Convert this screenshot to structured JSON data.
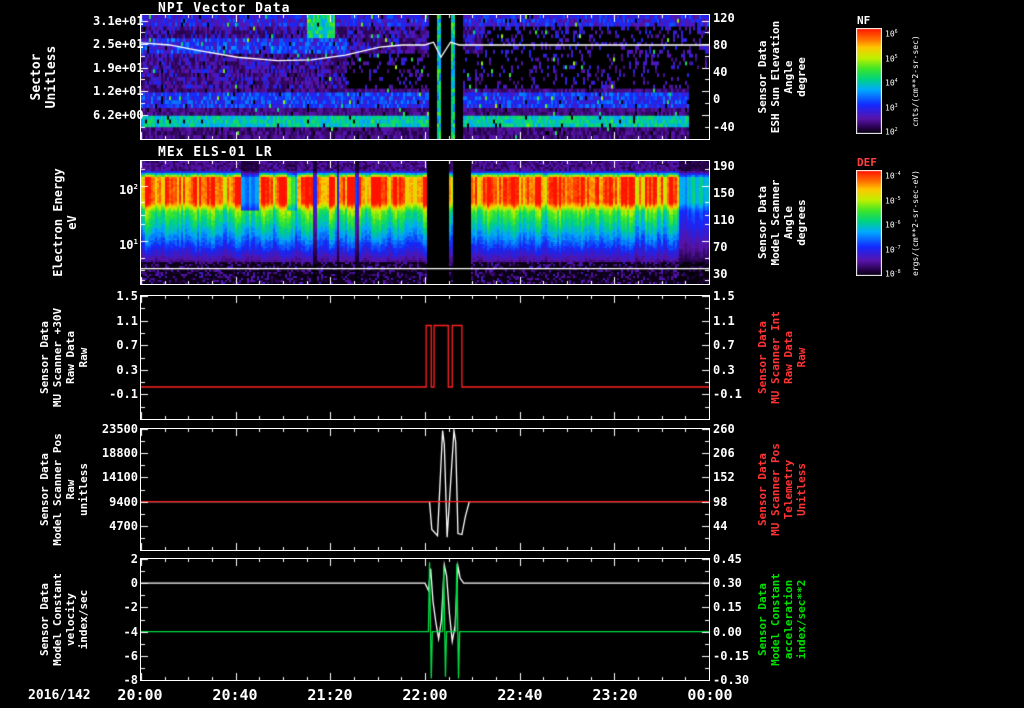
{
  "x_axis": {
    "date": "2016/142",
    "labels": [
      "20:00",
      "20:40",
      "21:20",
      "22:00",
      "22:40",
      "23:20",
      "00:00"
    ],
    "range_hours": 4
  },
  "colorbars": [
    {
      "label": "NF",
      "label_color": "#ffffff",
      "units": "cnts/(cm**2-sr-sec)",
      "ticks": [
        "10^6",
        "10^5",
        "10^4",
        "10^3",
        "10^2"
      ]
    },
    {
      "label": "DEF",
      "label_color": "#ff4040",
      "units": "ergs/(cm**2-sr-sec-eV)",
      "ticks": [
        "10^-4",
        "10^-5",
        "10^-6",
        "10^-7",
        "10^-8"
      ]
    }
  ],
  "chart_data": [
    {
      "id": "npi",
      "type": "heatmap",
      "title": "NPI Vector Data",
      "description": "Low-count sector spectrogram: violet/blue speckle, bright cyan band near bottom sectors, dark middle sectors after 21:25, data gap ~22:02-22:15, white sun-elevation overlay line",
      "ylabel_left": "Sector\nUnitless",
      "left_ticks": [
        {
          "f": 0.045,
          "label": "3.1e+01"
        },
        {
          "f": 0.235,
          "label": "2.5e+01"
        },
        {
          "f": 0.425,
          "label": "1.9e+01"
        },
        {
          "f": 0.615,
          "label": "1.2e+01"
        },
        {
          "f": 0.805,
          "label": "6.2e+00"
        }
      ],
      "left_minor_f": [
        0.14,
        0.33,
        0.52,
        0.71,
        0.9
      ],
      "ylabel_right": "Sensor Data\nESH Sun Elevation\nAngle\ndegree",
      "right_label_color": "#ffffff",
      "right_ticks": [
        {
          "f": 0.022,
          "label": "120"
        },
        {
          "f": 0.242,
          "label": "80"
        },
        {
          "f": 0.462,
          "label": "40"
        },
        {
          "f": 0.681,
          "label": "0"
        },
        {
          "f": 0.901,
          "label": "-40"
        }
      ],
      "ylim_right": [
        -58,
        124
      ],
      "series": [
        {
          "name": "ESH Sun Elevation Angle",
          "color": "#ffffff",
          "axis": "right",
          "points": [
            [
              0,
              83
            ],
            [
              0.05,
              80
            ],
            [
              0.1,
              72
            ],
            [
              0.17,
              62
            ],
            [
              0.24,
              57
            ],
            [
              0.3,
              58
            ],
            [
              0.36,
              65
            ],
            [
              0.42,
              77
            ],
            [
              0.46,
              80
            ],
            [
              0.5,
              80
            ],
            [
              0.515,
              84
            ],
            [
              0.528,
              62
            ],
            [
              0.545,
              84
            ],
            [
              0.56,
              80
            ],
            [
              1,
              80
            ]
          ]
        }
      ]
    },
    {
      "id": "els",
      "type": "heatmap",
      "title": "MEx ELS-01 LR",
      "description": "Electron energy-time spectrogram: intense red band 20-100 eV, green mid energies, blue/dark low energies, vertical striping, data gap ~22:02-22:15",
      "ylabel_left": "Electron Energy\neV",
      "left_ticks": [
        {
          "f": 0.2,
          "label": "10^2"
        },
        {
          "f": 0.65,
          "label": "10^1"
        }
      ],
      "left_minor_f": [
        0.065,
        0.336,
        0.436,
        0.515,
        0.785,
        0.886,
        0.965
      ],
      "ylabel_right": "Sensor Data\nModel Scanner\nAngle\ndegrees",
      "right_label_color": "#ffffff",
      "right_ticks": [
        {
          "f": 0.04,
          "label": "190"
        },
        {
          "f": 0.26,
          "label": "150"
        },
        {
          "f": 0.48,
          "label": "110"
        },
        {
          "f": 0.7,
          "label": "70"
        },
        {
          "f": 0.92,
          "label": "30"
        }
      ],
      "series": [
        {
          "name": "baseline",
          "color": "#ffffff",
          "axis": "frac",
          "points": [
            [
              0,
              0.875
            ],
            [
              1,
              0.875
            ]
          ]
        }
      ]
    },
    {
      "id": "mu_scanner_raw",
      "type": "line",
      "ylabel_left": "Sensor Data\nMU Scanner +30V\nRaw Data\nRaw",
      "left_ticks": [
        {
          "f": 0,
          "label": "1.5"
        },
        {
          "f": 0.2,
          "label": "1.1"
        },
        {
          "f": 0.4,
          "label": "0.7"
        },
        {
          "f": 0.6,
          "label": "0.3"
        },
        {
          "f": 0.8,
          "label": "-0.1"
        }
      ],
      "left_minor_f": [
        0.1,
        0.3,
        0.5,
        0.7,
        0.9
      ],
      "ylabel_right": "Sensor Data\nMU Scanner Int\nRaw Data\nRaw",
      "right_label_color": "#ff3333",
      "right_ticks": [
        {
          "f": 0,
          "label": "1.5"
        },
        {
          "f": 0.2,
          "label": "1.1"
        },
        {
          "f": 0.4,
          "label": "0.7"
        },
        {
          "f": 0.6,
          "label": "0.3"
        },
        {
          "f": 0.8,
          "label": "-0.1"
        }
      ],
      "ylim": [
        -0.5,
        1.5
      ],
      "series": [
        {
          "name": "MU Scanner +30V Raw",
          "color": "#ff2222",
          "axis": "left",
          "points": [
            [
              0,
              0.02
            ],
            [
              0.502,
              0.02
            ],
            [
              0.502,
              1.02
            ],
            [
              0.511,
              1.02
            ],
            [
              0.511,
              0.02
            ],
            [
              0.516,
              0.02
            ],
            [
              0.516,
              1.02
            ],
            [
              0.541,
              1.02
            ],
            [
              0.541,
              0.02
            ],
            [
              0.548,
              0.02
            ],
            [
              0.548,
              1.02
            ],
            [
              0.565,
              1.02
            ],
            [
              0.565,
              0.02
            ],
            [
              1,
              0.02
            ]
          ]
        }
      ]
    },
    {
      "id": "model_scanner_pos",
      "type": "line",
      "ylabel_left": "Sensor Data\nModel Scanner Pos\nRaw\nunitless",
      "left_ticks": [
        {
          "f": 0,
          "label": "23500"
        },
        {
          "f": 0.2,
          "label": "18800"
        },
        {
          "f": 0.4,
          "label": "14100"
        },
        {
          "f": 0.6,
          "label": "9400"
        },
        {
          "f": 0.8,
          "label": "4700"
        }
      ],
      "left_minor_f": [
        0.1,
        0.3,
        0.5,
        0.7,
        0.9
      ],
      "ylabel_right": "Sensor Data\nMU Scanner Pos\nTelemetry\nUnitless",
      "right_label_color": "#ff3333",
      "right_ticks": [
        {
          "f": 0,
          "label": "260"
        },
        {
          "f": 0.2,
          "label": "206"
        },
        {
          "f": 0.4,
          "label": "152"
        },
        {
          "f": 0.6,
          "label": "98"
        },
        {
          "f": 0.8,
          "label": "44"
        }
      ],
      "ylim": [
        0,
        23500
      ],
      "series": [
        {
          "name": "Model Scanner Pos Raw",
          "color": "#ffffff",
          "axis": "left",
          "points": [
            [
              0,
              9400
            ],
            [
              0.508,
              9400
            ],
            [
              0.512,
              4000
            ],
            [
              0.522,
              2800
            ],
            [
              0.531,
              23200
            ],
            [
              0.534,
              20500
            ],
            [
              0.539,
              2500
            ],
            [
              0.551,
              23200
            ],
            [
              0.554,
              21000
            ],
            [
              0.558,
              3200
            ],
            [
              0.565,
              3000
            ],
            [
              0.571,
              6500
            ],
            [
              0.578,
              9400
            ],
            [
              1,
              9400
            ]
          ]
        },
        {
          "name": "MU Scanner Pos Telemetry",
          "color": "#ff2222",
          "axis": "left",
          "points": [
            [
              0,
              9400
            ],
            [
              1,
              9400
            ]
          ]
        }
      ]
    },
    {
      "id": "model_constant",
      "type": "line",
      "ylabel_left": "Sensor Data\nModel Constant\nvelocity\nindex/sec",
      "left_ticks": [
        {
          "f": 0,
          "label": "2"
        },
        {
          "f": 0.2,
          "label": "0"
        },
        {
          "f": 0.4,
          "label": "-2"
        },
        {
          "f": 0.6,
          "label": "-4"
        },
        {
          "f": 0.8,
          "label": "-6"
        },
        {
          "f": 1,
          "label": "-8"
        }
      ],
      "left_minor_f": [
        0.1,
        0.3,
        0.5,
        0.7,
        0.9
      ],
      "ylabel_right": "Sensor Data\nModel Constant\nacceleration\nindex/sec**2",
      "right_label_color": "#00e000",
      "right_ticks": [
        {
          "f": 0,
          "label": "0.45"
        },
        {
          "f": 0.2,
          "label": "0.30"
        },
        {
          "f": 0.4,
          "label": "0.15"
        },
        {
          "f": 0.6,
          "label": "0.00"
        },
        {
          "f": 0.8,
          "label": "-0.15"
        },
        {
          "f": 1,
          "label": "-0.30"
        }
      ],
      "ylim": [
        -8,
        2
      ],
      "ylim_right": [
        -0.3,
        0.45
      ],
      "series": [
        {
          "name": "Model Constant velocity",
          "color": "#ffffff",
          "axis": "left",
          "points": [
            [
              0,
              0
            ],
            [
              0.5,
              0
            ],
            [
              0.506,
              -0.6
            ],
            [
              0.51,
              1.2
            ],
            [
              0.514,
              -1.5
            ],
            [
              0.519,
              -3.2
            ],
            [
              0.524,
              -4.6
            ],
            [
              0.529,
              -3.0
            ],
            [
              0.534,
              1.5
            ],
            [
              0.538,
              0.6
            ],
            [
              0.543,
              -2.5
            ],
            [
              0.548,
              -4.8
            ],
            [
              0.553,
              -3.5
            ],
            [
              0.558,
              1.4
            ],
            [
              0.562,
              0.4
            ],
            [
              0.568,
              0
            ],
            [
              1,
              0
            ]
          ]
        },
        {
          "name": "Model Constant acceleration",
          "color": "#00dd44",
          "axis": "right",
          "points": [
            [
              0,
              0
            ],
            [
              0.506,
              0
            ],
            [
              0.508,
              0.43
            ],
            [
              0.511,
              -0.29
            ],
            [
              0.513,
              0
            ],
            [
              0.531,
              0
            ],
            [
              0.533,
              0.41
            ],
            [
              0.536,
              -0.28
            ],
            [
              0.538,
              0
            ],
            [
              0.554,
              0
            ],
            [
              0.556,
              0.42
            ],
            [
              0.559,
              -0.29
            ],
            [
              0.561,
              0
            ],
            [
              1,
              0
            ]
          ]
        }
      ]
    }
  ]
}
